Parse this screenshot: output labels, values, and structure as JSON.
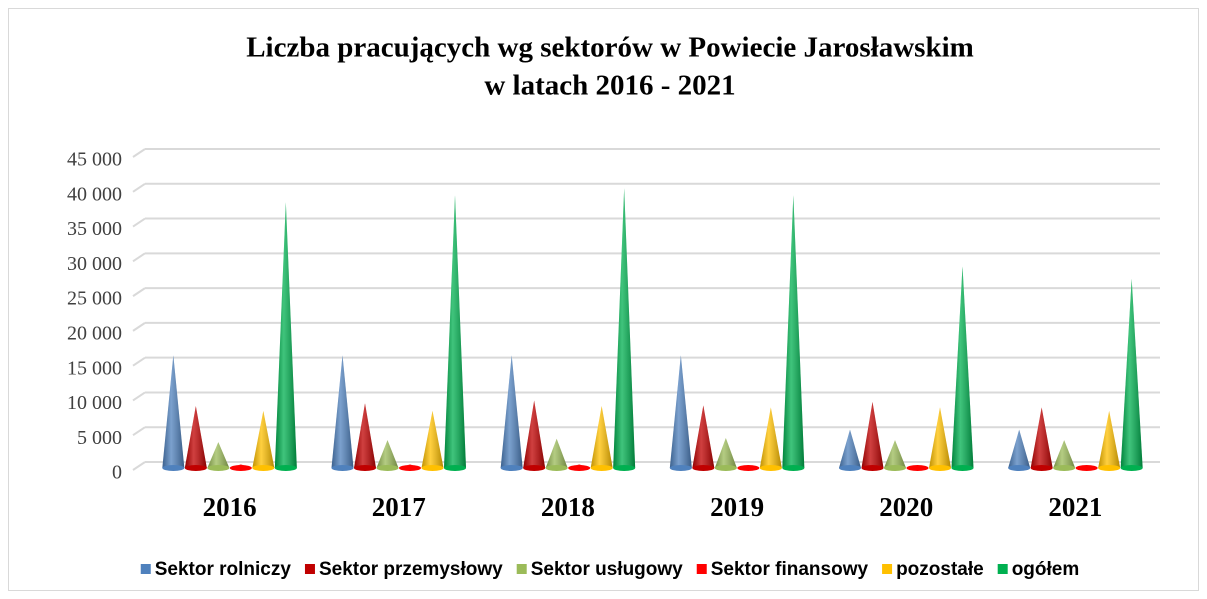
{
  "chart_data": {
    "type": "cone",
    "title": [
      "Liczba pracujących wg sektorów w Powiecie Jarosławskim",
      "w latach 2016 - 2021"
    ],
    "categories": [
      "2016",
      "2017",
      "2018",
      "2019",
      "2020",
      "2021"
    ],
    "series": [
      {
        "name": "Sektor rolniczy",
        "color": "#4f81bd",
        "values": [
          16500,
          16500,
          16500,
          16500,
          5800,
          5800
        ]
      },
      {
        "name": "Sektor przemysłowy",
        "color": "#c00000",
        "values": [
          9200,
          9600,
          10000,
          9300,
          9800,
          9000
        ]
      },
      {
        "name": "Sektor usługowy",
        "color": "#9bbb59",
        "values": [
          4000,
          4300,
          4500,
          4600,
          4300,
          4300
        ]
      },
      {
        "name": "Sektor finansowy",
        "color": "#ff0000",
        "values": [
          800,
          800,
          800,
          700,
          600,
          600
        ]
      },
      {
        "name": "pozostałe",
        "color": "#ffc000",
        "values": [
          8500,
          8500,
          9200,
          9000,
          9000,
          8500
        ]
      },
      {
        "name": "ogółem",
        "color": "#00b050",
        "values": [
          38500,
          39500,
          40500,
          39500,
          29300,
          27500
        ]
      }
    ],
    "ylim": [
      0,
      45000
    ],
    "yticks": [
      0,
      {
        "value": 5000,
        "label": "5 000"
      },
      {
        "value": 10000,
        "label": "10 000"
      },
      {
        "value": 15000,
        "label": "15 000"
      },
      {
        "value": 20000,
        "label": "20 000"
      },
      {
        "value": 25000,
        "label": "25 000"
      },
      {
        "value": 30000,
        "label": "30 000"
      },
      {
        "value": 35000,
        "label": "35 000"
      },
      {
        "value": 40000,
        "label": "40 000"
      },
      {
        "value": 45000,
        "label": "45 000"
      }
    ],
    "grid": true,
    "legend": "bottom"
  }
}
